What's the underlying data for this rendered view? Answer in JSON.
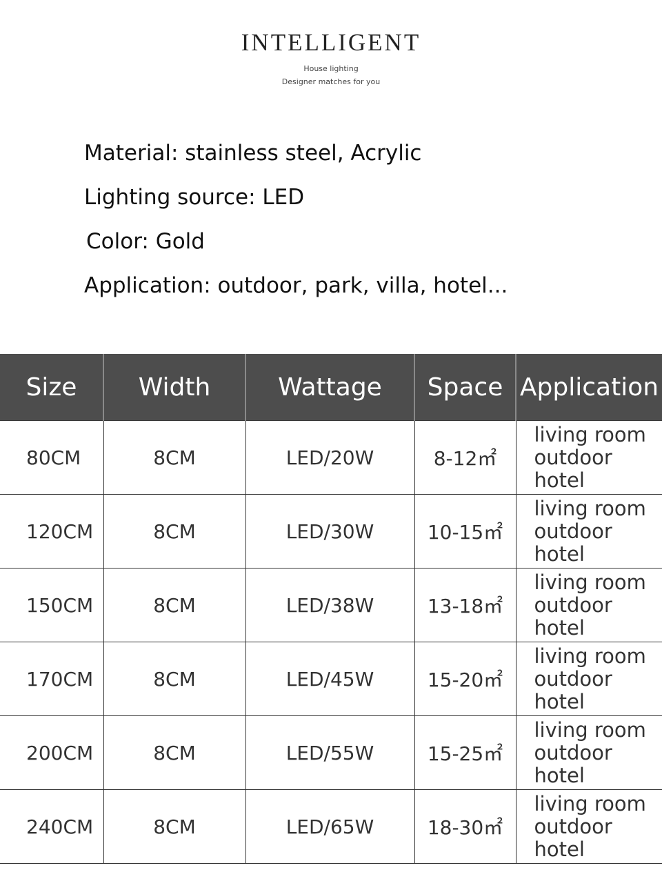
{
  "header": {
    "brand": "INTELLIGENT",
    "tagline1": "House lighting",
    "tagline2": "Designer matches for you"
  },
  "specs": [
    "Material: stainless steel, Acrylic",
    "Lighting source: LED",
    "Color: Gold",
    "Application: outdoor, park, villa, hotel..."
  ],
  "table": {
    "header_bg": "#4d4d4d",
    "columns": [
      "Size",
      "Width",
      "Wattage",
      "Space",
      "Application"
    ],
    "rows": [
      {
        "size": "80CM",
        "width": "8CM",
        "wattage": "LED/20W",
        "space": "8-12㎡",
        "application": [
          "living room",
          "outdoor",
          "hotel"
        ]
      },
      {
        "size": "120CM",
        "width": "8CM",
        "wattage": "LED/30W",
        "space": "10-15㎡",
        "application": [
          "living room",
          "outdoor",
          "hotel"
        ]
      },
      {
        "size": "150CM",
        "width": "8CM",
        "wattage": "LED/38W",
        "space": "13-18㎡",
        "application": [
          "living room",
          "outdoor",
          "hotel"
        ]
      },
      {
        "size": "170CM",
        "width": "8CM",
        "wattage": "LED/45W",
        "space": "15-20㎡",
        "application": [
          "living room",
          "outdoor",
          "hotel"
        ]
      },
      {
        "size": "200CM",
        "width": "8CM",
        "wattage": "LED/55W",
        "space": "15-25㎡",
        "application": [
          "living room",
          "outdoor",
          "hotel"
        ]
      },
      {
        "size": "240CM",
        "width": "8CM",
        "wattage": "LED/65W",
        "space": "18-30㎡",
        "application": [
          "living room",
          "outdoor",
          "hotel"
        ]
      }
    ]
  }
}
